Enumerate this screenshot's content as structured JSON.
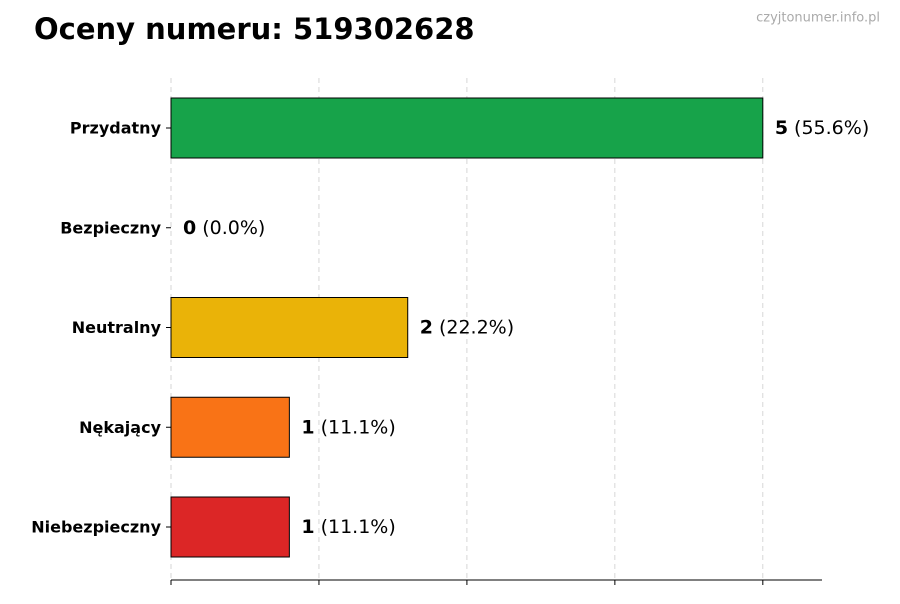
{
  "chart_data": {
    "type": "barh",
    "title": "Oceny numeru: 519302628",
    "watermark": "czyjtonumer.info.pl",
    "categories": [
      "Przydatny",
      "Bezpieczny",
      "Neutralny",
      "Nękający",
      "Niebezpieczny"
    ],
    "values": [
      5,
      0,
      2,
      1,
      1
    ],
    "share_labels": [
      "(55.6%)",
      "(0.0%)",
      "(22.2%)",
      "(11.1%)",
      "(11.1%)"
    ],
    "colors": [
      "#17a34a",
      "#2563eb",
      "#eab308",
      "#f97316",
      "#dc2626"
    ],
    "xlim": [
      0,
      5.5
    ],
    "xticks": [
      0,
      1.25,
      2.5,
      3.75,
      5
    ],
    "grid": true
  }
}
